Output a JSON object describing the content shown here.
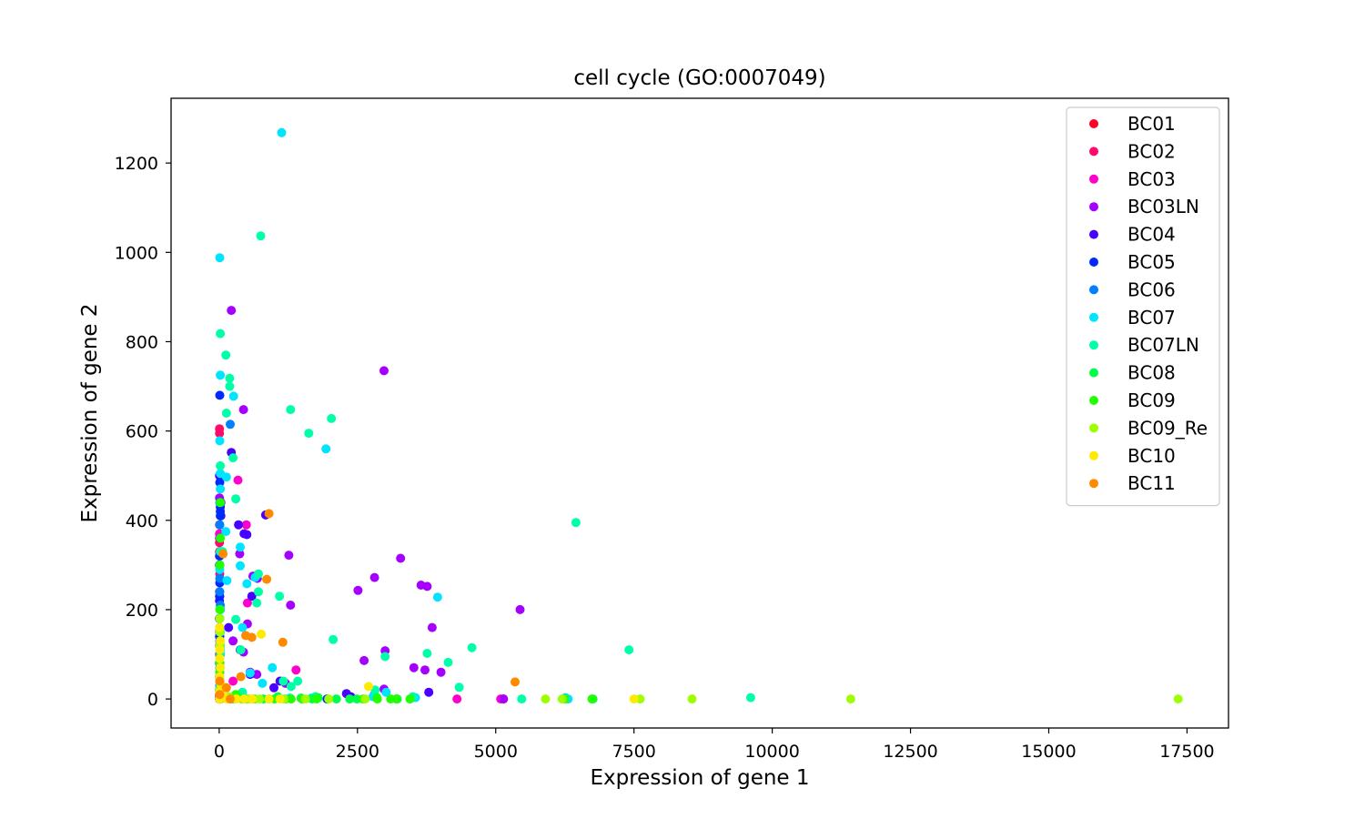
{
  "chart_data": {
    "type": "scatter",
    "title": "cell cycle (GO:0007049)",
    "xlabel": "Expression of gene 1",
    "ylabel": "Expression of gene 2",
    "xlim": [
      -870,
      18250
    ],
    "ylim": [
      -65,
      1345
    ],
    "xticks": [
      0,
      2500,
      5000,
      7500,
      10000,
      12500,
      15000,
      17500
    ],
    "yticks": [
      0,
      200,
      400,
      600,
      800,
      1000,
      1200
    ],
    "legend_position": "top-right",
    "series": [
      {
        "name": "BC01",
        "color": "#ff0029",
        "points": []
      },
      {
        "name": "BC02",
        "color": "#ff0a6a",
        "points": [
          [
            5,
            605
          ],
          [
            5,
            595
          ],
          [
            5,
            390
          ],
          [
            5,
            350
          ],
          [
            5,
            330
          ],
          [
            10,
            280
          ],
          [
            5,
            150
          ],
          [
            5,
            100
          ],
          [
            5,
            50
          ],
          [
            5,
            20
          ],
          [
            5,
            5
          ]
        ]
      },
      {
        "name": "BC03",
        "color": "#ff00cc",
        "points": [
          [
            340,
            490
          ],
          [
            490,
            390
          ],
          [
            510,
            215
          ],
          [
            1390,
            65
          ],
          [
            4300,
            0
          ],
          [
            5090,
            0
          ],
          [
            5140,
            0
          ],
          [
            5,
            370
          ],
          [
            5,
            300
          ],
          [
            5,
            240
          ],
          [
            5,
            180
          ],
          [
            5,
            120
          ],
          [
            250,
            40
          ],
          [
            5,
            0
          ],
          [
            20,
            0
          ],
          [
            60,
            2
          ]
        ]
      },
      {
        "name": "BC03LN",
        "color": "#a500ff",
        "points": [
          [
            220,
            870
          ],
          [
            2980,
            735
          ],
          [
            440,
            648
          ],
          [
            370,
            325
          ],
          [
            610,
            275
          ],
          [
            690,
            270
          ],
          [
            1260,
            322
          ],
          [
            3280,
            315
          ],
          [
            2810,
            272
          ],
          [
            3650,
            255
          ],
          [
            3760,
            252
          ],
          [
            2510,
            243
          ],
          [
            1290,
            210
          ],
          [
            5440,
            200
          ],
          [
            3850,
            160
          ],
          [
            510,
            168
          ],
          [
            250,
            130
          ],
          [
            3000,
            108
          ],
          [
            3520,
            70
          ],
          [
            3720,
            65
          ],
          [
            4010,
            60
          ],
          [
            2620,
            86
          ],
          [
            2980,
            22
          ],
          [
            680,
            55
          ],
          [
            560,
            60
          ],
          [
            1200,
            35
          ],
          [
            5140,
            0
          ],
          [
            440,
            105
          ],
          [
            5,
            450
          ],
          [
            5,
            360
          ],
          [
            5,
            230
          ]
        ]
      },
      {
        "name": "BC04",
        "color": "#4900ff",
        "points": [
          [
            220,
            552
          ],
          [
            350,
            390
          ],
          [
            450,
            370
          ],
          [
            500,
            368
          ],
          [
            840,
            412
          ],
          [
            590,
            230
          ],
          [
            5,
            320
          ],
          [
            5,
            300
          ],
          [
            30,
            440
          ],
          [
            30,
            410
          ],
          [
            5,
            220
          ],
          [
            5,
            180
          ],
          [
            5,
            140
          ],
          [
            170,
            160
          ],
          [
            380,
            110
          ],
          [
            5,
            80
          ],
          [
            560,
            55
          ],
          [
            990,
            25
          ],
          [
            1100,
            40
          ],
          [
            2300,
            12
          ],
          [
            2380,
            5
          ],
          [
            2800,
            8
          ],
          [
            3790,
            15
          ],
          [
            5,
            10
          ],
          [
            5,
            0
          ],
          [
            5,
            500
          ]
        ]
      },
      {
        "name": "BC05",
        "color": "#0029ff",
        "points": [
          [
            10,
            680
          ],
          [
            10,
            485
          ],
          [
            20,
            430
          ],
          [
            20,
            420
          ],
          [
            20,
            410
          ],
          [
            10,
            320
          ],
          [
            10,
            300
          ],
          [
            10,
            260
          ],
          [
            10,
            230
          ],
          [
            20,
            200
          ],
          [
            10,
            180
          ],
          [
            10,
            160
          ],
          [
            10,
            140
          ],
          [
            10,
            120
          ],
          [
            20,
            100
          ],
          [
            10,
            80
          ],
          [
            10,
            60
          ],
          [
            1950,
            0
          ],
          [
            10,
            30
          ],
          [
            10,
            10
          ],
          [
            10,
            0
          ]
        ]
      },
      {
        "name": "BC06",
        "color": "#0080ff",
        "points": [
          [
            200,
            615
          ],
          [
            10,
            440
          ],
          [
            10,
            390
          ],
          [
            20,
            330
          ],
          [
            10,
            270
          ],
          [
            10,
            240
          ],
          [
            20,
            210
          ],
          [
            10,
            130
          ],
          [
            10,
            70
          ],
          [
            10,
            40
          ],
          [
            10,
            10
          ],
          [
            10,
            0
          ]
        ]
      },
      {
        "name": "BC07",
        "color": "#00e5ff",
        "points": [
          [
            1130,
            1268
          ],
          [
            10,
            988
          ],
          [
            20,
            725
          ],
          [
            260,
            678
          ],
          [
            10,
            578
          ],
          [
            20,
            505
          ],
          [
            130,
            497
          ],
          [
            1930,
            560
          ],
          [
            20,
            470
          ],
          [
            120,
            375
          ],
          [
            380,
            340
          ],
          [
            380,
            298
          ],
          [
            10,
            290
          ],
          [
            500,
            258
          ],
          [
            140,
            265
          ],
          [
            650,
            272
          ],
          [
            3950,
            228
          ],
          [
            20,
            200
          ],
          [
            420,
            160
          ],
          [
            960,
            70
          ],
          [
            560,
            58
          ],
          [
            780,
            35
          ],
          [
            1280,
            2
          ],
          [
            1670,
            2
          ],
          [
            2780,
            5
          ],
          [
            3020,
            15
          ],
          [
            3550,
            3
          ],
          [
            6260,
            3
          ],
          [
            6310,
            0
          ],
          [
            20,
            110
          ],
          [
            10,
            50
          ],
          [
            10,
            25
          ],
          [
            10,
            0
          ],
          [
            250,
            0
          ]
        ]
      },
      {
        "name": "BC07LN",
        "color": "#00ffa9",
        "points": [
          [
            750,
            1037
          ],
          [
            20,
            818
          ],
          [
            120,
            770
          ],
          [
            190,
            718
          ],
          [
            190,
            700
          ],
          [
            130,
            640
          ],
          [
            1290,
            648
          ],
          [
            2030,
            628
          ],
          [
            1620,
            595
          ],
          [
            250,
            540
          ],
          [
            20,
            522
          ],
          [
            300,
            448
          ],
          [
            20,
            330
          ],
          [
            60,
            330
          ],
          [
            710,
            280
          ],
          [
            680,
            215
          ],
          [
            710,
            240
          ],
          [
            1090,
            230
          ],
          [
            6450,
            395
          ],
          [
            2060,
            133
          ],
          [
            300,
            178
          ],
          [
            390,
            110
          ],
          [
            3000,
            95
          ],
          [
            3760,
            102
          ],
          [
            4140,
            82
          ],
          [
            4570,
            115
          ],
          [
            7410,
            110
          ],
          [
            4340,
            26
          ],
          [
            5470,
            0
          ],
          [
            9610,
            3
          ],
          [
            1160,
            40
          ],
          [
            1420,
            40
          ],
          [
            1300,
            28
          ],
          [
            1740,
            5
          ],
          [
            2820,
            20
          ],
          [
            3500,
            5
          ],
          [
            420,
            15
          ],
          [
            20,
            100
          ],
          [
            20,
            150
          ],
          [
            10,
            60
          ],
          [
            20,
            20
          ]
        ]
      },
      {
        "name": "BC08",
        "color": "#00ff4a",
        "points": [
          [
            1060,
            5
          ],
          [
            1480,
            2
          ],
          [
            1680,
            0
          ],
          [
            1790,
            3
          ],
          [
            2120,
            0
          ],
          [
            2360,
            0
          ],
          [
            2490,
            0
          ],
          [
            2850,
            3
          ],
          [
            3220,
            0
          ],
          [
            6760,
            0
          ],
          [
            10,
            20
          ],
          [
            10,
            0
          ],
          [
            200,
            0
          ],
          [
            500,
            0
          ],
          [
            800,
            0
          ],
          [
            1200,
            0
          ]
        ]
      },
      {
        "name": "BC09",
        "color": "#22ff00",
        "points": [
          [
            20,
            440
          ],
          [
            20,
            360
          ],
          [
            10,
            300
          ],
          [
            10,
            200
          ],
          [
            10,
            160
          ],
          [
            20,
            120
          ],
          [
            10,
            80
          ],
          [
            10,
            60
          ],
          [
            10,
            40
          ],
          [
            10,
            20
          ],
          [
            10,
            0
          ],
          [
            300,
            10
          ],
          [
            420,
            0
          ],
          [
            640,
            0
          ],
          [
            900,
            0
          ],
          [
            1000,
            0
          ],
          [
            1300,
            0
          ],
          [
            1500,
            0
          ],
          [
            1760,
            0
          ],
          [
            2600,
            0
          ],
          [
            2860,
            0
          ],
          [
            3100,
            0
          ],
          [
            3200,
            0
          ],
          [
            3450,
            0
          ],
          [
            6250,
            0
          ],
          [
            6740,
            0
          ]
        ]
      },
      {
        "name": "BC09_Re",
        "color": "#9fff00",
        "points": [
          [
            10,
            180
          ],
          [
            10,
            150
          ],
          [
            10,
            120
          ],
          [
            10,
            90
          ],
          [
            20,
            70
          ],
          [
            10,
            40
          ],
          [
            10,
            20
          ],
          [
            10,
            0
          ],
          [
            170,
            5
          ],
          [
            300,
            0
          ],
          [
            540,
            0
          ],
          [
            730,
            0
          ],
          [
            1170,
            0
          ],
          [
            1560,
            0
          ],
          [
            1980,
            0
          ],
          [
            2640,
            0
          ],
          [
            5900,
            0
          ],
          [
            6200,
            0
          ],
          [
            7610,
            0
          ],
          [
            8550,
            0
          ],
          [
            11420,
            0
          ],
          [
            17340,
            0
          ]
        ]
      },
      {
        "name": "BC10",
        "color": "#ffea00",
        "points": [
          [
            10,
            160
          ],
          [
            20,
            130
          ],
          [
            10,
            110
          ],
          [
            10,
            90
          ],
          [
            20,
            70
          ],
          [
            10,
            50
          ],
          [
            20,
            35
          ],
          [
            10,
            15
          ],
          [
            10,
            0
          ],
          [
            80,
            5
          ],
          [
            310,
            0
          ],
          [
            760,
            145
          ],
          [
            2700,
            28
          ],
          [
            7500,
            0
          ],
          [
            140,
            0
          ],
          [
            450,
            0
          ],
          [
            600,
            0
          ],
          [
            900,
            0
          ],
          [
            1100,
            0
          ]
        ]
      },
      {
        "name": "BC11",
        "color": "#ff8a00",
        "points": [
          [
            900,
            415
          ],
          [
            70,
            325
          ],
          [
            860,
            268
          ],
          [
            480,
            142
          ],
          [
            590,
            138
          ],
          [
            1150,
            127
          ],
          [
            390,
            50
          ],
          [
            5350,
            38
          ],
          [
            130,
            25
          ],
          [
            10,
            40
          ],
          [
            10,
            10
          ],
          [
            200,
            0
          ]
        ]
      }
    ]
  }
}
